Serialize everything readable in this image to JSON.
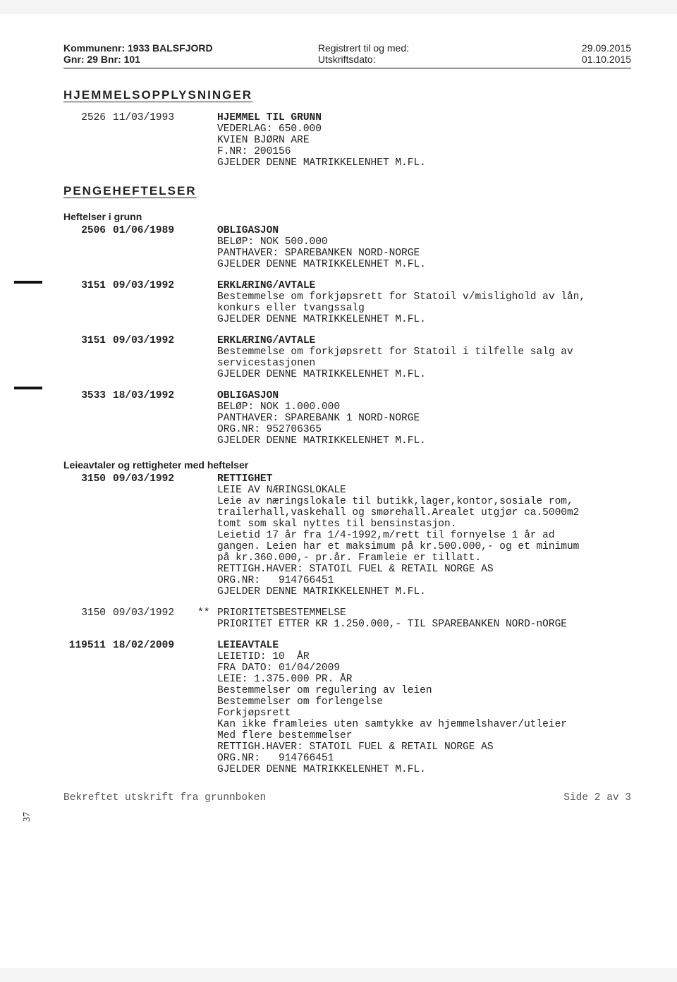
{
  "header": {
    "kommune_label": "Kommunenr: 1933  BALSFJORD",
    "gnr_label": "Gnr: 29  Bnr: 101",
    "reg_label": "Registrert til og med:",
    "reg_date": "29.09.2015",
    "uts_label": "Utskriftsdato:",
    "uts_date": "01.10.2015"
  },
  "sections": {
    "hjemmel_title": "HJEMMELSOPPLYSNINGER",
    "penge_title": "PENGEHEFTELSER",
    "heftelser_sub": "Heftelser i grunn",
    "leie_sub": "Leieavtaler og rettigheter med heftelser"
  },
  "hjemmel": {
    "num": "2526",
    "date": "11/03/1993",
    "title": "HJEMMEL TIL GRUNN",
    "lines": [
      "VEDERLAG: 650.000",
      "KVIEN BJØRN ARE",
      "F.NR: 200156",
      "GJELDER DENNE MATRIKKELENHET M.FL."
    ]
  },
  "heftelser": [
    {
      "num": "2506",
      "date": "01/06/1989",
      "title": "OBLIGASJON",
      "lines": [
        "BELØP: NOK 500.000",
        "PANTHAVER: SPAREBANKEN NORD-NORGE",
        "GJELDER DENNE MATRIKKELENHET M.FL."
      ]
    },
    {
      "num": "3151",
      "date": "09/03/1992",
      "title": "ERKLÆRING/AVTALE",
      "lines": [
        "Bestemmelse om forkjøpsrett for Statoil v/mislighold av lån,",
        "konkurs eller tvangssalg",
        "GJELDER DENNE MATRIKKELENHET M.FL."
      ]
    },
    {
      "num": "3151",
      "date": "09/03/1992",
      "title": "ERKLÆRING/AVTALE",
      "lines": [
        "Bestemmelse om forkjøpsrett for Statoil i tilfelle salg av",
        "servicestasjonen",
        "GJELDER DENNE MATRIKKELENHET M.FL."
      ]
    },
    {
      "num": "3533",
      "date": "18/03/1992",
      "title": "OBLIGASJON",
      "lines": [
        "BELØP: NOK 1.000.000",
        "PANTHAVER: SPAREBANK 1 NORD-NORGE",
        "ORG.NR: 952706365",
        "GJELDER DENNE MATRIKKELENHET M.FL."
      ]
    }
  ],
  "leie": [
    {
      "num": "3150",
      "date": "09/03/1992",
      "mark": "",
      "title": "RETTIGHET",
      "lines": [
        "LEIE AV NÆRINGSLOKALE",
        "Leie av næringslokale til butikk,lager,kontor,sosiale rom,",
        "trailerhall,vaskehall og smørehall.Arealet utgjør ca.5000m2",
        "tomt som skal nyttes til bensinstasjon.",
        "Leietid 17 år fra 1/4-1992,m/rett til fornyelse 1 år ad",
        "gangen. Leien har et maksimum på kr.500.000,- og et minimum",
        "på kr.360.000,- pr.år. Framleie er tillatt.",
        "RETTIGH.HAVER: STATOIL FUEL & RETAIL NORGE AS",
        "ORG.NR:   914766451",
        "GJELDER DENNE MATRIKKELENHET M.FL."
      ]
    },
    {
      "num": "3150",
      "date": "09/03/1992",
      "mark": "**",
      "title": "PRIORITETSBESTEMMELSE",
      "lines": [
        "PRIORITET ETTER KR 1.250.000,- TIL SPAREBANKEN NORD-nORGE"
      ],
      "plain_title": true
    },
    {
      "num": "119511",
      "date": "18/02/2009",
      "mark": "",
      "title": "LEIEAVTALE",
      "lines": [
        "LEIETID: 10  ÅR",
        "FRA DATO: 01/04/2009",
        "LEIE: 1.375.000 PR. ÅR",
        "Bestemmelser om regulering av leien",
        "Bestemmelser om forlengelse",
        "Forkjøpsrett",
        "Kan ikke framleies uten samtykke av hjemmelshaver/utleier",
        "Med flere bestemmelser",
        "RETTIGH.HAVER: STATOIL FUEL & RETAIL NORGE AS",
        "ORG.NR:   914766451",
        "GJELDER DENNE MATRIKKELENHET M.FL."
      ]
    }
  ],
  "footer": {
    "left": "Bekreftet utskrift fra grunnboken",
    "right": "Side 2 av 3"
  },
  "margin_num": "37"
}
